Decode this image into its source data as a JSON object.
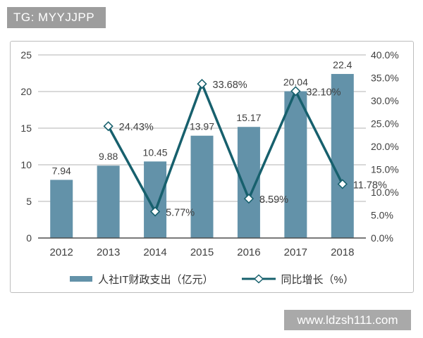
{
  "page": {
    "tag": "TG: MYYJJPP",
    "watermark": "www.ldzsh111.com"
  },
  "colors": {
    "tag_bg": "#9d9d9d",
    "watermark_bg": "#a9a9a9",
    "bar": "#6392a9",
    "line": "#17606d",
    "grid": "#b3b3b3",
    "axis": "#4d4d4d",
    "text": "#3f3f3f"
  },
  "chart_data": {
    "type": "bar",
    "subtype": "combo-bar-line",
    "title": "",
    "xlabel": "",
    "ylabel": "",
    "grid": "horizontal",
    "legend_position": "bottom",
    "categories": [
      "2012",
      "2013",
      "2014",
      "2015",
      "2016",
      "2017",
      "2018"
    ],
    "series": [
      {
        "name": "人社IT财政支出（亿元）",
        "type": "bar",
        "axis": "left",
        "color": "#6392a9",
        "values": [
          7.94,
          9.88,
          10.45,
          13.97,
          15.17,
          20.04,
          22.4
        ],
        "labels": [
          "7.94",
          "9.88",
          "10.45",
          "13.97",
          "15.17",
          "20.04",
          "22.4"
        ]
      },
      {
        "name": "同比增长（%）",
        "type": "line",
        "axis": "right",
        "marker": "diamond",
        "color": "#17606d",
        "values": [
          null,
          24.43,
          5.77,
          33.68,
          8.59,
          32.1,
          11.78
        ],
        "labels": [
          "",
          "24.43%",
          "5.77%",
          "33.68%",
          "8.59%",
          "32.10%",
          "11.78%"
        ]
      }
    ],
    "left_axis": {
      "min": 0,
      "max": 25,
      "step": 5,
      "tick_labels": [
        "0",
        "5",
        "10",
        "15",
        "20",
        "25"
      ]
    },
    "right_axis": {
      "min": 0,
      "max": 40,
      "step": 5,
      "tick_labels": [
        "0.0%",
        "5.0%",
        "10.0%",
        "15.0%",
        "20.0%",
        "25.0%",
        "30.0%",
        "35.0%",
        "40.0%"
      ]
    }
  }
}
